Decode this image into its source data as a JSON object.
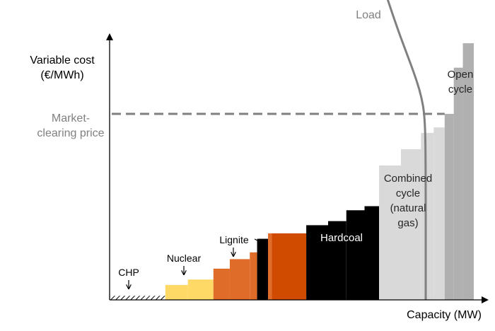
{
  "chart_data": {
    "type": "bar",
    "title": "",
    "xlabel": "Capacity (MW)",
    "ylabel_lines": [
      "Variable cost",
      "(€/MWh)"
    ],
    "price_label_lines": [
      "Market-",
      "clearing price"
    ],
    "load_label": "Load",
    "market_clearing_price": 0.685,
    "colors": {
      "chp": "#000000",
      "nuclear": "#ffd966",
      "lignite": "#e06c2a",
      "lignite_dark": "#d04a00",
      "hardcoal": "#000000",
      "combined_cycle": "#d9d9d9",
      "open_cycle": "#b0b0b0",
      "price_line": "#808080",
      "load_line": "#808080",
      "axis": "#000000"
    },
    "series": [
      {
        "key": "chp",
        "label_lines": [
          "CHP"
        ],
        "pattern": "hatch",
        "blocks": [
          [
            0.0,
            0.153,
            0.015
          ]
        ]
      },
      {
        "key": "nuclear",
        "label_lines": [
          "Nuclear"
        ],
        "blocks": [
          [
            0.153,
            0.215,
            0.055
          ],
          [
            0.215,
            0.285,
            0.075
          ]
        ]
      },
      {
        "key": "lignite",
        "label_lines": [
          "Lignite"
        ],
        "blocks": [
          [
            0.285,
            0.33,
            0.115
          ],
          [
            0.33,
            0.385,
            0.15
          ],
          [
            0.385,
            0.405,
            0.175
          ],
          [
            0.405,
            0.435,
            0.225
          ],
          [
            0.435,
            0.445,
            0.245
          ],
          [
            0.445,
            0.5,
            0.245
          ],
          [
            0.5,
            0.54,
            0.245
          ]
        ]
      },
      {
        "key": "hardcoal",
        "label_lines": [
          "Hardcoal"
        ],
        "blocks": [
          [
            0.54,
            0.6,
            0.275
          ],
          [
            0.6,
            0.65,
            0.29
          ],
          [
            0.65,
            0.7,
            0.33
          ],
          [
            0.7,
            0.74,
            0.345
          ]
        ]
      },
      {
        "key": "combined_cycle",
        "label_lines": [
          "Combined",
          "cycle",
          "(natural",
          "gas)"
        ],
        "blocks": [
          [
            0.74,
            0.8,
            0.495
          ],
          [
            0.8,
            0.855,
            0.555
          ],
          [
            0.855,
            0.89,
            0.615
          ],
          [
            0.89,
            0.92,
            0.635
          ]
        ]
      },
      {
        "key": "open_cycle",
        "label_lines": [
          "Open",
          "cycle"
        ],
        "blocks": [
          [
            0.92,
            0.945,
            0.685
          ],
          [
            0.945,
            0.97,
            0.855
          ],
          [
            0.97,
            1.0,
            0.945
          ]
        ]
      }
    ],
    "load_curve": [
      [
        0.745,
        1.18
      ],
      [
        0.79,
        1.0
      ],
      [
        0.818,
        0.9
      ],
      [
        0.84,
        0.82
      ],
      [
        0.856,
        0.75
      ],
      [
        0.865,
        0.68
      ],
      [
        0.868,
        0.55
      ],
      [
        0.868,
        0.0
      ]
    ],
    "xlim": [
      0,
      1
    ],
    "ylim": [
      0,
      1
    ]
  }
}
